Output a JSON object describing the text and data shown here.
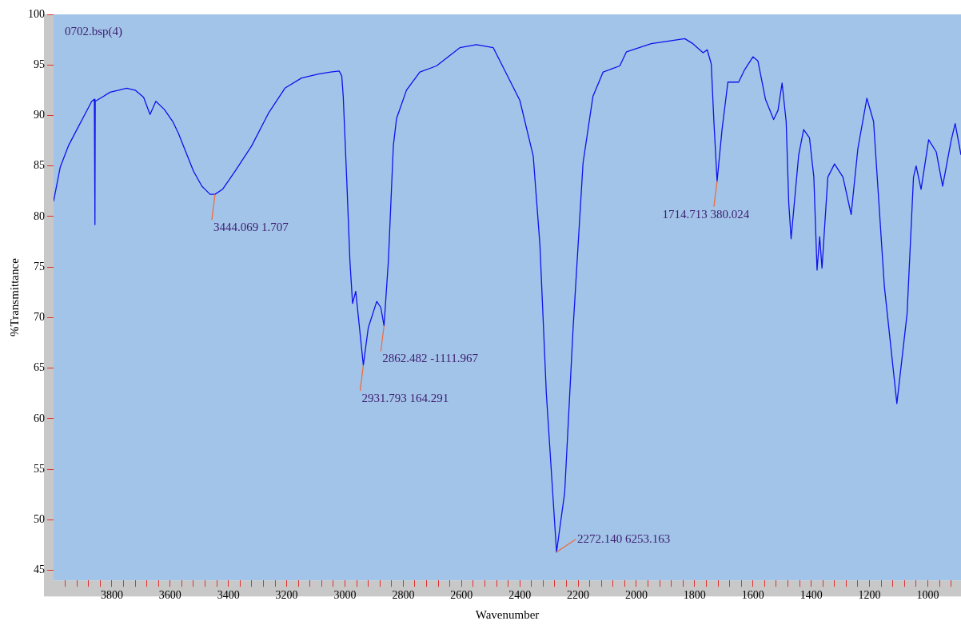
{
  "chart_data": {
    "type": "line",
    "xlabel": "Wavenumber",
    "ylabel": "%Transmittance",
    "xlim": [
      4000,
      886
    ],
    "ylim": [
      44,
      100
    ],
    "xticks": [
      {
        "value": 3960,
        "label": null
      },
      {
        "value": 3920,
        "label": null
      },
      {
        "value": 3880,
        "label": null
      },
      {
        "value": 3840,
        "label": null
      },
      3800,
      {
        "value": 3760,
        "label": null
      },
      {
        "value": 3720,
        "label": null
      },
      {
        "value": 3680,
        "label": null
      },
      {
        "value": 3640,
        "label": null
      },
      3600,
      {
        "value": 3560,
        "label": null
      },
      {
        "value": 3520,
        "label": null
      },
      {
        "value": 3480,
        "label": null
      },
      {
        "value": 3440,
        "label": null
      },
      3400,
      {
        "value": 3360,
        "label": null
      },
      {
        "value": 3320,
        "label": null
      },
      {
        "value": 3280,
        "label": null
      },
      {
        "value": 3240,
        "label": null
      },
      3200,
      {
        "value": 3160,
        "label": null
      },
      {
        "value": 3120,
        "label": null
      },
      {
        "value": 3080,
        "label": null
      },
      {
        "value": 3040,
        "label": null
      },
      3000,
      {
        "value": 2960,
        "label": null
      },
      {
        "value": 2920,
        "label": null
      },
      {
        "value": 2880,
        "label": null
      },
      {
        "value": 2840,
        "label": null
      },
      2800,
      {
        "value": 2760,
        "label": null
      },
      {
        "value": 2720,
        "label": null
      },
      {
        "value": 2680,
        "label": null
      },
      {
        "value": 2640,
        "label": null
      },
      2600,
      {
        "value": 2560,
        "label": null
      },
      {
        "value": 2520,
        "label": null
      },
      {
        "value": 2480,
        "label": null
      },
      {
        "value": 2440,
        "label": null
      },
      2400,
      {
        "value": 2360,
        "label": null
      },
      {
        "value": 2320,
        "label": null
      },
      {
        "value": 2280,
        "label": null
      },
      {
        "value": 2240,
        "label": null
      },
      2200,
      {
        "value": 2160,
        "label": null
      },
      {
        "value": 2120,
        "label": null
      },
      {
        "value": 2080,
        "label": null
      },
      {
        "value": 2040,
        "label": null
      },
      2000,
      {
        "value": 1960,
        "label": null
      },
      {
        "value": 1920,
        "label": null
      },
      {
        "value": 1880,
        "label": null
      },
      {
        "value": 1840,
        "label": null
      },
      1800,
      {
        "value": 1760,
        "label": null
      },
      {
        "value": 1720,
        "label": null
      },
      {
        "value": 1680,
        "label": null
      },
      {
        "value": 1640,
        "label": null
      },
      1600,
      {
        "value": 1560,
        "label": null
      },
      {
        "value": 1520,
        "label": null
      },
      {
        "value": 1480,
        "label": null
      },
      {
        "value": 1440,
        "label": null
      },
      1400,
      {
        "value": 1360,
        "label": null
      },
      {
        "value": 1320,
        "label": null
      },
      {
        "value": 1280,
        "label": null
      },
      {
        "value": 1240,
        "label": null
      },
      1200,
      {
        "value": 1160,
        "label": null
      },
      {
        "value": 1120,
        "label": null
      },
      {
        "value": 1080,
        "label": null
      },
      {
        "value": 1040,
        "label": null
      },
      1000,
      {
        "value": 960,
        "label": null
      },
      {
        "value": 920,
        "label": null
      }
    ],
    "yticks": [
      45,
      50,
      55,
      60,
      65,
      70,
      75,
      80,
      85,
      90,
      95,
      100
    ],
    "grid": false,
    "series": [
      {
        "color": "#1010ee",
        "x": [
          4000,
          3977,
          3949,
          3920,
          3891,
          3869,
          3860,
          3858,
          3857,
          3834,
          3806,
          3777,
          3749,
          3720,
          3691,
          3669,
          3649,
          3620,
          3591,
          3571,
          3549,
          3520,
          3491,
          3463,
          3446,
          3420,
          3377,
          3320,
          3263,
          3206,
          3149,
          3091,
          3049,
          3020,
          3011,
          3006,
          2994,
          2983,
          2974,
          2963,
          2937,
          2920,
          2891,
          2877,
          2866,
          2851,
          2834,
          2823,
          2789,
          2743,
          2686,
          2606,
          2549,
          2491,
          2463,
          2400,
          2354,
          2331,
          2309,
          2274,
          2246,
          2217,
          2183,
          2149,
          2114,
          2057,
          2034,
          1949,
          1834,
          1806,
          1771,
          1757,
          1743,
          1734,
          1723,
          1706,
          1686,
          1649,
          1629,
          1600,
          1583,
          1557,
          1529,
          1514,
          1500,
          1486,
          1477,
          1469,
          1443,
          1426,
          1406,
          1391,
          1380,
          1371,
          1363,
          1343,
          1320,
          1291,
          1263,
          1240,
          1209,
          1186,
          1149,
          1106,
          1071,
          1049,
          1040,
          1023,
          997,
          971,
          949,
          920,
          906,
          886
        ],
        "values": [
          81.5,
          84.9,
          87.0,
          88.6,
          90.2,
          91.4,
          91.6,
          79.2,
          91.4,
          91.8,
          92.3,
          92.5,
          92.7,
          92.5,
          91.8,
          90.1,
          91.4,
          90.6,
          89.4,
          88.2,
          86.6,
          84.5,
          83.0,
          82.2,
          82.2,
          82.7,
          84.5,
          87.0,
          90.2,
          92.7,
          93.7,
          94.1,
          94.3,
          94.4,
          93.9,
          91.9,
          83.7,
          75.6,
          71.4,
          72.6,
          65.3,
          69.0,
          71.6,
          71.0,
          69.2,
          75.6,
          87.0,
          89.7,
          92.5,
          94.3,
          94.9,
          96.7,
          97.0,
          96.7,
          95.1,
          91.5,
          86.0,
          77.2,
          62.5,
          46.8,
          52.7,
          69.0,
          85.3,
          91.9,
          94.3,
          94.9,
          96.3,
          97.1,
          97.6,
          97.1,
          96.2,
          96.5,
          95.1,
          89.4,
          83.5,
          88.6,
          93.3,
          93.3,
          94.5,
          95.8,
          95.4,
          91.6,
          89.6,
          90.5,
          93.2,
          89.4,
          81.3,
          77.8,
          86.1,
          88.6,
          87.8,
          83.9,
          74.7,
          78.0,
          74.9,
          83.9,
          85.2,
          83.9,
          80.2,
          86.7,
          91.7,
          89.4,
          73.1,
          61.5,
          70.4,
          83.9,
          85.0,
          82.7,
          87.6,
          86.4,
          83.0,
          87.5,
          89.2,
          86.1
        ]
      }
    ],
    "annotations": [
      "0702.bsp(4)",
      {
        "text": "3444.069 1.707",
        "x": 3446,
        "y": 82.2
      },
      {
        "text": "2931.793 164.291",
        "x": 2937,
        "y": 65.3
      },
      {
        "text": "2862.482 -1111.967",
        "x": 2866,
        "y": 69.2
      },
      {
        "text": "2272.140 6253.163",
        "x": 2274,
        "y": 46.8
      },
      {
        "text": "1714.713 380.024",
        "x": 1723,
        "y": 83.5
      }
    ]
  }
}
